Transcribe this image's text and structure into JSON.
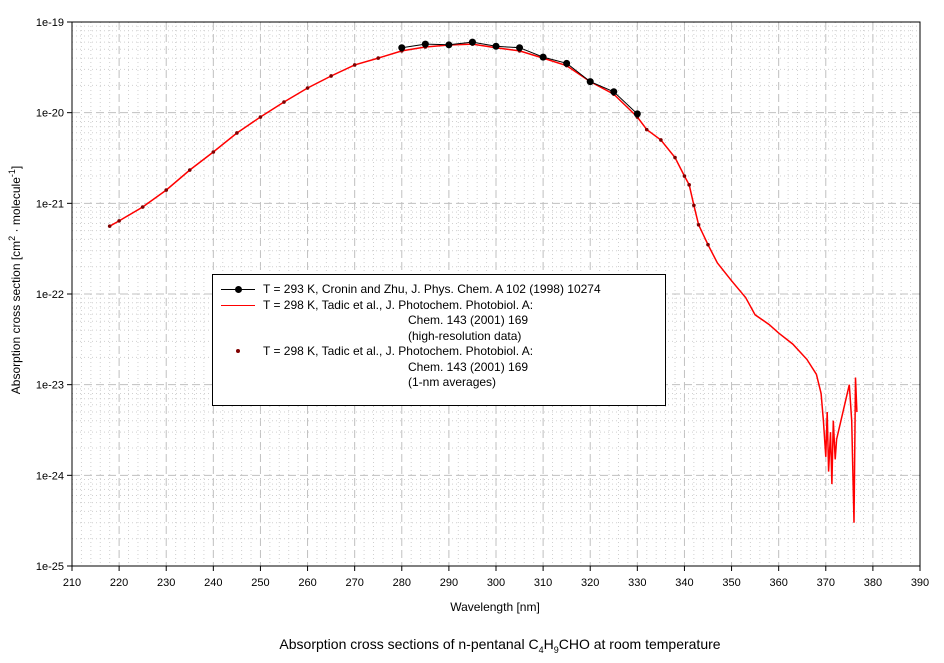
{
  "chart_data": {
    "type": "line",
    "caption": {
      "pre": "Absorption cross sections of n-pentanal C",
      "s1": "4",
      "mid": "H",
      "s2": "9",
      "post": "CHO at room temperature"
    },
    "xlabel": "Wavelength [nm]",
    "ylabel": {
      "pre": "Absorption cross section [cm",
      "sup1": "2",
      "mid": " · molecule",
      "sup2": "-1",
      "post": "]"
    },
    "xlim": [
      210,
      390
    ],
    "ylim": [
      1e-25,
      1e-19
    ],
    "yscale": "log",
    "grid": true,
    "xticks": [
      "210",
      "220",
      "230",
      "240",
      "250",
      "260",
      "270",
      "280",
      "290",
      "300",
      "310",
      "320",
      "330",
      "340",
      "350",
      "360",
      "370",
      "380",
      "390"
    ],
    "yticks": [
      "1e-19",
      "1e-20",
      "1e-21",
      "1e-22",
      "1e-23",
      "1e-24",
      "1e-25"
    ],
    "legend_placement": "center-left",
    "series": [
      {
        "name": "T = 293 K, Cronin and Zhu, J. Phys. Chem. A 102 (1998) 10274",
        "color": "#000000",
        "marker": "circle",
        "line": true,
        "x": [
          280,
          285,
          290,
          295,
          300,
          305,
          310,
          315,
          320,
          325,
          330
        ],
        "y": [
          5.2e-20,
          5.7e-20,
          5.6e-20,
          6e-20,
          5.4e-20,
          5.2e-20,
          4.1e-20,
          3.5e-20,
          2.2e-20,
          1.7e-20,
          9.7e-21
        ]
      },
      {
        "name": "T = 298 K, Tadic et al., J. Photochem. Photobiol. A:",
        "name_cont": [
          "Chem. 143 (2001) 169",
          "(high-resolution data)"
        ],
        "color": "#ff0000",
        "marker": "none",
        "line": true,
        "x": [
          218,
          220,
          225,
          230,
          235,
          240,
          245,
          250,
          255,
          260,
          265,
          270,
          275,
          280,
          285,
          290,
          295,
          300,
          305,
          310,
          315,
          320,
          325,
          330,
          332,
          335,
          338,
          340,
          341,
          342,
          343,
          345,
          347,
          350,
          353,
          355,
          358,
          360,
          363,
          366,
          368,
          369,
          369.5,
          370,
          370.3,
          370.6,
          371,
          371.3,
          371.6,
          372,
          372.3,
          375,
          375.5,
          376,
          376.3,
          376.6
        ],
        "y": [
          5.6e-22,
          6.4e-22,
          9.1e-22,
          1.4e-21,
          2.33e-21,
          3.68e-21,
          5.97e-21,
          8.95e-21,
          1.31e-20,
          1.87e-20,
          2.54e-20,
          3.36e-20,
          4e-20,
          4.8e-20,
          5.3e-20,
          5.57e-20,
          5.7e-20,
          5.2e-20,
          4.8e-20,
          4e-20,
          3.3e-20,
          2.2e-20,
          1.6e-20,
          8.95e-21,
          6.5e-21,
          5e-21,
          3.2e-21,
          2e-21,
          1.6e-21,
          9.5e-22,
          5.8e-22,
          3.5e-22,
          2.2e-22,
          1.4e-22,
          9.1e-23,
          5.9e-23,
          4.6e-23,
          3.7e-23,
          2.8e-23,
          1.9e-23,
          1.3e-23,
          8e-24,
          4e-24,
          1.6e-24,
          5e-24,
          1.1e-24,
          3e-24,
          8e-25,
          4e-24,
          1.5e-24,
          2.5e-24,
          1e-23,
          4e-24,
          3e-25,
          1.2e-23,
          5e-24
        ]
      },
      {
        "name": "T = 298 K, Tadic et al., J. Photochem. Photobiol. A:",
        "name_cont": [
          "Chem. 143 (2001) 169",
          "(1-nm averages)"
        ],
        "color": "#800000",
        "marker": "dot",
        "line": false,
        "x": [
          218,
          220,
          225,
          230,
          235,
          240,
          245,
          250,
          255,
          260,
          265,
          270,
          275,
          280,
          285,
          290,
          295,
          300,
          305,
          310,
          315,
          320,
          325,
          330,
          332,
          335,
          338,
          340,
          341,
          342,
          343,
          345
        ],
        "y": [
          5.6e-22,
          6.4e-22,
          9.1e-22,
          1.4e-21,
          2.33e-21,
          3.68e-21,
          5.97e-21,
          8.95e-21,
          1.31e-20,
          1.87e-20,
          2.54e-20,
          3.36e-20,
          4e-20,
          4.8e-20,
          5.3e-20,
          5.57e-20,
          5.7e-20,
          5.2e-20,
          4.8e-20,
          4e-20,
          3.3e-20,
          2.2e-20,
          1.6e-20,
          8.95e-21,
          6.5e-21,
          5e-21,
          3.2e-21,
          2e-21,
          1.6e-21,
          9.5e-22,
          5.8e-22,
          3.5e-22
        ]
      }
    ]
  }
}
